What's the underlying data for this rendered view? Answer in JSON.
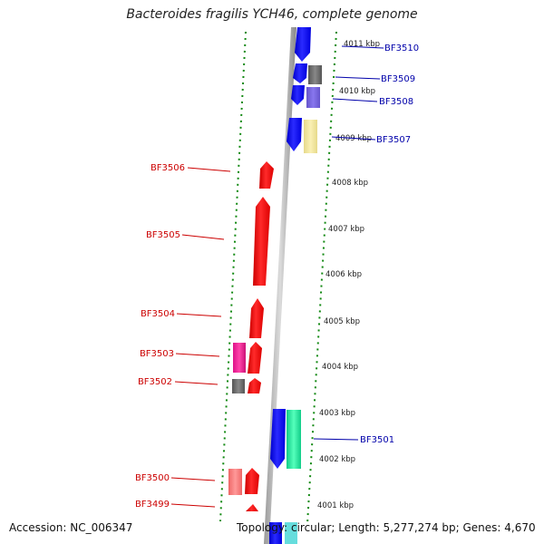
{
  "title": "Bacteroides fragilis YCH46, complete genome",
  "footer": {
    "accession": "Accession: NC_006347",
    "stats": "Topology: circular; Length: 5,277,274 bp; Genes: 4,670"
  },
  "colors": {
    "forward": "#ff0000",
    "reverse": "#0000ff",
    "forward_label": "#cc0000",
    "reverse_label": "#0000aa",
    "tick": "#118811",
    "backbone": "#888888"
  },
  "scale_labels": [
    "4011 kbp",
    "4010 kbp",
    "4009 kbp",
    "4008 kbp",
    "4007 kbp",
    "4006 kbp",
    "4005 kbp",
    "4004 kbp",
    "4003 kbp",
    "4002 kbp",
    "4001 kbp"
  ],
  "left_genes": [
    {
      "label": "BF3506",
      "color": "red"
    },
    {
      "label": "BF3505",
      "color": "red"
    },
    {
      "label": "BF3504",
      "color": "red"
    },
    {
      "label": "BF3503",
      "color": "magenta"
    },
    {
      "label": "BF3502",
      "color": "gray"
    },
    {
      "label": "BF3500",
      "color": "salmon"
    },
    {
      "label": "BF3499",
      "color": "red"
    }
  ],
  "right_genes": [
    {
      "label": "BF3510",
      "color": "blue"
    },
    {
      "label": "BF3509",
      "color": "gray"
    },
    {
      "label": "BF3508",
      "color": "purple"
    },
    {
      "label": "BF3507",
      "color": "khaki"
    },
    {
      "label": "BF3501",
      "color": "teal-green"
    }
  ]
}
